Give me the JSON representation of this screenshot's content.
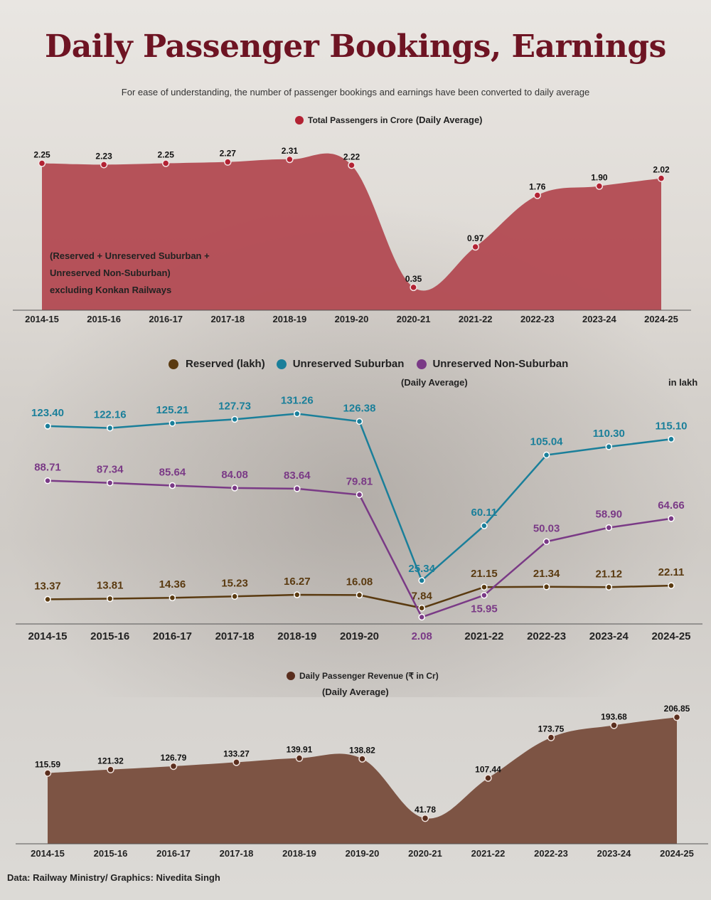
{
  "title": "Daily Passenger Bookings, Earnings",
  "subtitle": "For ease of understanding, the number of passenger bookings and earnings have been converted to daily average",
  "credit": "Data: Railway Ministry/  Graphics: Nivedita Singh",
  "colors": {
    "title": "#6e1423",
    "total_area": "#b24a52",
    "total_dot": "#b22233",
    "reserved": "#5a3a10",
    "unreserved_suburban": "#1a7f9a",
    "unreserved_non_suburban": "#7a3a86",
    "revenue_area": "#7a4f3f",
    "revenue_dot": "#5a2e1e"
  },
  "chart1": {
    "legend": "Total Passengers in Crore",
    "legend_suffix": "(Daily Average)",
    "note_lines": [
      "(Reserved + Unreserved Suburban +",
      "Unreserved Non-Suburban)",
      "excluding Konkan Railways"
    ]
  },
  "chart2": {
    "legend": [
      "Reserved (lakh)",
      "Unreserved Suburban",
      "Unreserved Non-Suburban"
    ],
    "sublabel": "(Daily Average)",
    "unit": "in lakh"
  },
  "chart3": {
    "legend": "Daily Passenger Revenue (₹ in Cr)",
    "sublabel": "(Daily Average)"
  },
  "chart_data": [
    {
      "type": "area",
      "title": "Total Passengers in Crore (Daily Average)",
      "categories": [
        "2014-15",
        "2015-16",
        "2016-17",
        "2017-18",
        "2018-19",
        "2019-20",
        "2020-21",
        "2021-22",
        "2022-23",
        "2023-24",
        "2024-25"
      ],
      "series": [
        {
          "name": "Total Passengers in Crore",
          "values": [
            2.25,
            2.23,
            2.25,
            2.27,
            2.31,
            2.22,
            0.35,
            0.97,
            1.76,
            1.9,
            2.02
          ]
        }
      ],
      "ylim": [
        0,
        2.31
      ],
      "grid": false
    },
    {
      "type": "line",
      "categories": [
        "2014-15",
        "2015-16",
        "2016-17",
        "2017-18",
        "2018-19",
        "2019-20",
        "2020-21",
        "2021-22",
        "2022-23",
        "2023-24",
        "2024-25"
      ],
      "series": [
        {
          "name": "Reserved (lakh)",
          "values": [
            13.37,
            13.81,
            14.36,
            15.23,
            16.27,
            16.08,
            7.84,
            21.15,
            21.34,
            21.12,
            22.11
          ]
        },
        {
          "name": "Unreserved Suburban",
          "values": [
            123.4,
            122.16,
            125.21,
            127.73,
            131.26,
            126.38,
            25.34,
            60.11,
            105.04,
            110.3,
            115.1
          ]
        },
        {
          "name": "Unreserved Non-Suburban",
          "values": [
            88.71,
            87.34,
            85.64,
            84.08,
            83.64,
            79.81,
            2.08,
            15.95,
            50.03,
            58.9,
            64.66
          ]
        }
      ],
      "ylabel": "in lakh",
      "legend": "top",
      "grid": false
    },
    {
      "type": "area",
      "title": "Daily Passenger Revenue (₹ in Cr)",
      "categories": [
        "2014-15",
        "2015-16",
        "2016-17",
        "2017-18",
        "2018-19",
        "2019-20",
        "2020-21",
        "2021-22",
        "2022-23",
        "2023-24",
        "2024-25"
      ],
      "series": [
        {
          "name": "Daily Passenger Revenue (₹ in Cr)",
          "values": [
            115.59,
            121.32,
            126.79,
            133.27,
            139.91,
            138.82,
            41.78,
            107.44,
            173.75,
            193.68,
            206.85
          ]
        }
      ],
      "grid": false
    }
  ]
}
